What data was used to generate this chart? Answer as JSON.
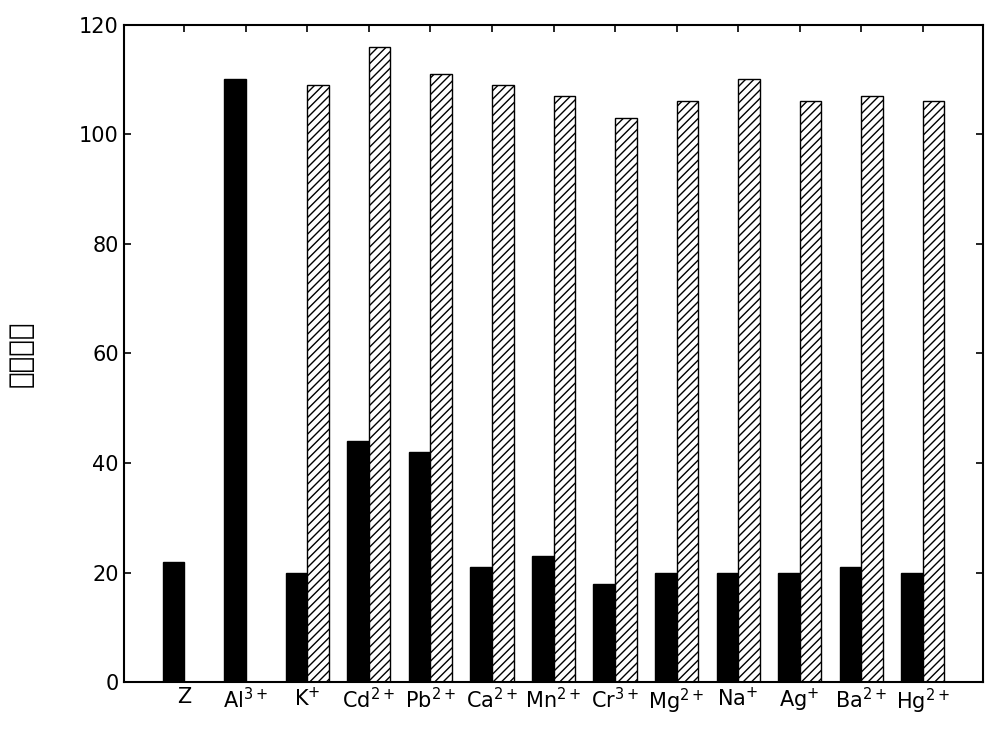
{
  "black_bars": [
    22,
    110,
    20,
    44,
    42,
    21,
    23,
    18,
    20,
    20,
    20,
    21,
    20
  ],
  "hatched_bars": [
    0,
    0,
    109,
    116,
    111,
    109,
    107,
    103,
    106,
    110,
    106,
    107,
    106
  ],
  "bar_color_solid": "#000000",
  "bar_color_hatched_face": "#ffffff",
  "bar_color_hatched_edge": "#000000",
  "hatch_pattern": "////",
  "ylim": [
    0,
    120
  ],
  "yticks": [
    0,
    20,
    40,
    60,
    80,
    100,
    120
  ],
  "bar_width": 0.35,
  "figsize": [
    10.0,
    7.33
  ],
  "dpi": 100,
  "background_color": "#ffffff",
  "ylabel_fontsize": 20,
  "tick_fontsize": 15,
  "xlabel_fontsize": 15
}
